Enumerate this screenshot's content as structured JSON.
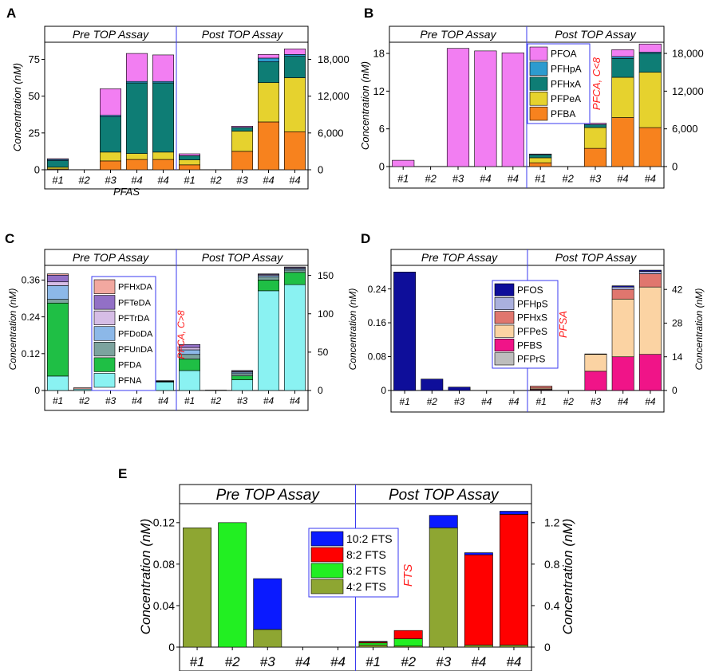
{
  "figure": {
    "header_pre": "Pre TOP Assay",
    "header_post": "Post TOP Assay",
    "categories": [
      "#1",
      "#2",
      "#3",
      "#4",
      "#4"
    ]
  },
  "chart_data": [
    {
      "panel": "A",
      "type": "bar",
      "stacked": true,
      "ylabel": "Concentration (nM)",
      "xlabel": "PFAS",
      "left_ylim": [
        0,
        85
      ],
      "left_ticks": [
        0,
        25,
        50,
        75
      ],
      "left_tick_labels": [
        "0",
        "25",
        "50",
        "75"
      ],
      "right_ylim": [
        0,
        20400
      ],
      "right_ticks": [
        0,
        6000,
        12000,
        18000
      ],
      "right_tick_labels": [
        "0",
        "6,000",
        "12,000",
        "18,000"
      ],
      "series": [
        {
          "name": "PFBA",
          "color": "#f7821e"
        },
        {
          "name": "PFPeA",
          "color": "#e6d22e"
        },
        {
          "name": "PFHxA",
          "color": "#0e7d75"
        },
        {
          "name": "PFHpA",
          "color": "#2d9bcf"
        },
        {
          "name": "PFOA",
          "color": "#f27ef2"
        }
      ],
      "pre": [
        [
          0.5,
          1.2,
          4.5,
          0.8,
          0.5
        ],
        [
          0,
          0,
          0,
          0,
          0
        ],
        [
          6,
          6,
          24,
          1,
          18
        ],
        [
          7,
          4,
          48,
          1,
          19
        ],
        [
          7,
          5,
          47,
          1,
          18
        ]
      ],
      "post": [
        [
          800,
          800,
          700,
          0,
          300
        ],
        [
          0,
          0,
          0,
          0,
          0
        ],
        [
          3000,
          3300,
          600,
          0,
          200
        ],
        [
          7800,
          6400,
          3400,
          600,
          600
        ],
        [
          6200,
          8800,
          3500,
          300,
          900
        ]
      ]
    },
    {
      "panel": "B",
      "type": "bar",
      "stacked": true,
      "ylabel": "Concentration (nM)",
      "side_label": "PFCA, C<8",
      "left_ylim": [
        0,
        19.4
      ],
      "left_ticks": [
        0,
        6,
        12,
        18
      ],
      "left_tick_labels": [
        "0",
        "6",
        "12",
        "18"
      ],
      "right_ylim": [
        0,
        19400
      ],
      "right_ticks": [
        0,
        6000,
        12000,
        18000
      ],
      "right_tick_labels": [
        "0",
        "6,000",
        "12,000",
        "18,000"
      ],
      "series": [
        {
          "name": "PFBA",
          "color": "#f7821e"
        },
        {
          "name": "PFPeA",
          "color": "#e6d22e"
        },
        {
          "name": "PFHxA",
          "color": "#0e7d75"
        },
        {
          "name": "PFHpA",
          "color": "#2d9bcf"
        },
        {
          "name": "PFOA",
          "color": "#f27ef2"
        }
      ],
      "legend": [
        "PFOA",
        "PFHpA",
        "PFHxA",
        "PFPeA",
        "PFBA"
      ],
      "pre": [
        [
          0,
          0,
          0,
          0,
          1.0
        ],
        [
          0,
          0,
          0,
          0,
          0
        ],
        [
          0,
          0,
          0,
          0,
          18.8
        ],
        [
          0,
          0,
          0,
          0,
          18.4
        ],
        [
          0,
          0,
          0,
          0,
          18.1
        ]
      ],
      "post": [
        [
          600,
          800,
          500,
          0,
          100
        ],
        [
          0,
          0,
          0,
          0,
          0
        ],
        [
          2900,
          3300,
          500,
          0,
          200
        ],
        [
          7800,
          6400,
          3000,
          300,
          1100
        ],
        [
          6200,
          8800,
          3000,
          200,
          1300
        ]
      ]
    },
    {
      "panel": "C",
      "type": "bar",
      "stacked": true,
      "ylabel": "Concentration (nM)",
      "side_label": "PFCA, C>8",
      "left_ylim": [
        0,
        0.4
      ],
      "left_ticks": [
        0,
        0.12,
        0.24,
        0.36
      ],
      "left_tick_labels": [
        "0",
        "0.12",
        "0.24",
        "0.36"
      ],
      "right_ylim": [
        0,
        160
      ],
      "right_ticks": [
        0,
        50,
        100,
        150
      ],
      "right_tick_labels": [
        "0",
        "50",
        "100",
        "150"
      ],
      "series": [
        {
          "name": "PFNA",
          "color": "#8af2f2"
        },
        {
          "name": "PFDA",
          "color": "#1fbf45"
        },
        {
          "name": "PFUnDA",
          "color": "#7ca39e"
        },
        {
          "name": "PFDoDA",
          "color": "#8cb8e8"
        },
        {
          "name": "PFTrDA",
          "color": "#d6bde6"
        },
        {
          "name": "PFTeDA",
          "color": "#9270c6"
        },
        {
          "name": "PFHxDA",
          "color": "#f2a8a0"
        }
      ],
      "legend": [
        "PFHxDA",
        "PFTeDA",
        "PFTrDA",
        "PFDoDA",
        "PFUnDA",
        "PFDA",
        "PFNA"
      ],
      "pre": [
        [
          0.047,
          0.238,
          0.012,
          0.045,
          0.012,
          0.022,
          0.004
        ],
        [
          0.005,
          0,
          0,
          0,
          0,
          0,
          0.004
        ],
        [
          0.028,
          0,
          0.003,
          0,
          0.003,
          0,
          0.003
        ],
        [
          0.036,
          0.001,
          0.001,
          0,
          0.001,
          0,
          0.001
        ],
        [
          0.028,
          0.001,
          0.001,
          0,
          0.001,
          0,
          0.001
        ]
      ],
      "post": [
        [
          26,
          15,
          6,
          6,
          3,
          4,
          0
        ],
        [
          0.5,
          0,
          0,
          0,
          0,
          0,
          0
        ],
        [
          14,
          5,
          3,
          2,
          1,
          1,
          0
        ],
        [
          130,
          14,
          4,
          2,
          1,
          1,
          0
        ],
        [
          138,
          16,
          3,
          2,
          1,
          1,
          0
        ]
      ]
    },
    {
      "panel": "D",
      "type": "bar",
      "stacked": true,
      "ylabel": "Concentration (nM)",
      "side_label": "PFSA",
      "left_ylim": [
        0,
        0.29
      ],
      "left_ticks": [
        0,
        0.08,
        0.16,
        0.24
      ],
      "left_tick_labels": [
        "0",
        "0.08",
        "0.16",
        "0.24"
      ],
      "right_ylim": [
        0,
        51
      ],
      "right_ticks": [
        0,
        14,
        28,
        42
      ],
      "right_tick_labels": [
        "0",
        "14",
        "28",
        "42"
      ],
      "series": [
        {
          "name": "PFPrS",
          "color": "#bdbdbd"
        },
        {
          "name": "PFBS",
          "color": "#f01488"
        },
        {
          "name": "PFPeS",
          "color": "#fbd3a3"
        },
        {
          "name": "PFHxS",
          "color": "#e0766e"
        },
        {
          "name": "PFHpS",
          "color": "#aab0de"
        },
        {
          "name": "PFOS",
          "color": "#0e0e9a"
        }
      ],
      "legend": [
        "PFOS",
        "PFHpS",
        "PFHxS",
        "PFPeS",
        "PFBS",
        "PFPrS"
      ],
      "pre": [
        [
          0,
          0,
          0,
          0,
          0,
          0.28
        ],
        [
          0,
          0,
          0,
          0,
          0,
          0.027
        ],
        [
          0,
          0,
          0,
          0,
          0,
          0.008
        ],
        [
          0,
          0,
          0,
          0,
          0,
          0
        ],
        [
          0,
          0,
          0,
          0,
          0,
          0
        ]
      ],
      "post": [
        [
          0.2,
          0.3,
          0.5,
          0.8,
          0,
          0
        ],
        [
          0,
          0,
          0,
          0,
          0,
          0
        ],
        [
          0,
          8,
          7,
          0.2,
          0,
          0
        ],
        [
          0,
          14,
          24,
          4,
          1,
          0.5
        ],
        [
          0,
          15,
          28,
          5.5,
          1,
          0.5
        ]
      ]
    },
    {
      "panel": "E",
      "type": "bar",
      "stacked": true,
      "ylabel": "Concentration (nM)",
      "side_label": "FTS",
      "left_ylim": [
        0,
        0.136
      ],
      "left_ticks": [
        0,
        0.04,
        0.08,
        0.12
      ],
      "left_tick_labels": [
        "0",
        "0.04",
        "0.08",
        "0.12"
      ],
      "right_ylim": [
        0,
        1.36
      ],
      "right_ticks": [
        0,
        0.4,
        0.8,
        1.2
      ],
      "right_tick_labels": [
        "0",
        "0.4",
        "0.8",
        "1.2"
      ],
      "series": [
        {
          "name": "4:2 FTS",
          "color": "#8ea632"
        },
        {
          "name": "6:2 FTS",
          "color": "#22ef22"
        },
        {
          "name": "8:2 FTS",
          "color": "#ff0000"
        },
        {
          "name": "10:2 FTS",
          "color": "#0a1aff"
        }
      ],
      "legend": [
        "10:2 FTS",
        "8:2 FTS",
        "6:2 FTS",
        "4:2 FTS"
      ],
      "pre": [
        [
          0.115,
          0,
          0,
          0
        ],
        [
          0,
          0.12,
          0,
          0
        ],
        [
          0.017,
          0,
          0,
          0.049
        ],
        [
          0,
          0,
          0,
          0
        ],
        [
          0,
          0,
          0,
          0
        ]
      ],
      "post": [
        [
          0.02,
          0.02,
          0.01,
          0.005
        ],
        [
          0.01,
          0.07,
          0.08,
          0
        ],
        [
          1.15,
          0,
          0,
          0.12
        ],
        [
          0.02,
          0,
          0.87,
          0.02
        ],
        [
          0.02,
          0,
          1.26,
          0.03
        ]
      ]
    }
  ]
}
